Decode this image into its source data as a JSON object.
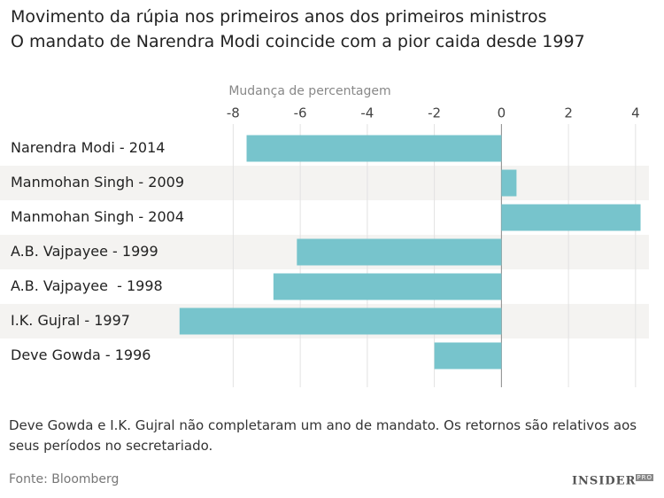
{
  "chart_data": {
    "type": "bar",
    "orientation": "horizontal",
    "title": "Movimento da rúpia nos primeiros anos dos primeiros ministros",
    "subtitle": "O mandato de Narendra Modi coincide com a pior caida desde 1997",
    "x_label": "Mudança de percentagem",
    "categories": [
      "Narendra Modi - 2014",
      "Manmohan Singh - 2009",
      "Manmohan Singh - 2004",
      "A.B. Vajpayee - 1999",
      "A.B. Vajpayee  - 1998",
      "I.K. Gujral - 1997",
      "Deve Gowda - 1996"
    ],
    "values": [
      -7.6,
      0.45,
      4.15,
      -6.1,
      -6.8,
      -9.6,
      -2.0
    ],
    "color": "#77c4cc",
    "xlim": [
      -9.7,
      4.4
    ],
    "xticks": [
      -8,
      -6,
      -4,
      -2,
      0,
      2,
      4
    ],
    "grid": true,
    "note": "Deve Gowda e I.K. Gujral não completaram um ano de mandato. Os retornos são relativos aos seus períodos no secretariado.",
    "source": "Fonte: Bloomberg",
    "logo": "INSIDER",
    "logo_suffix": "PRO"
  }
}
